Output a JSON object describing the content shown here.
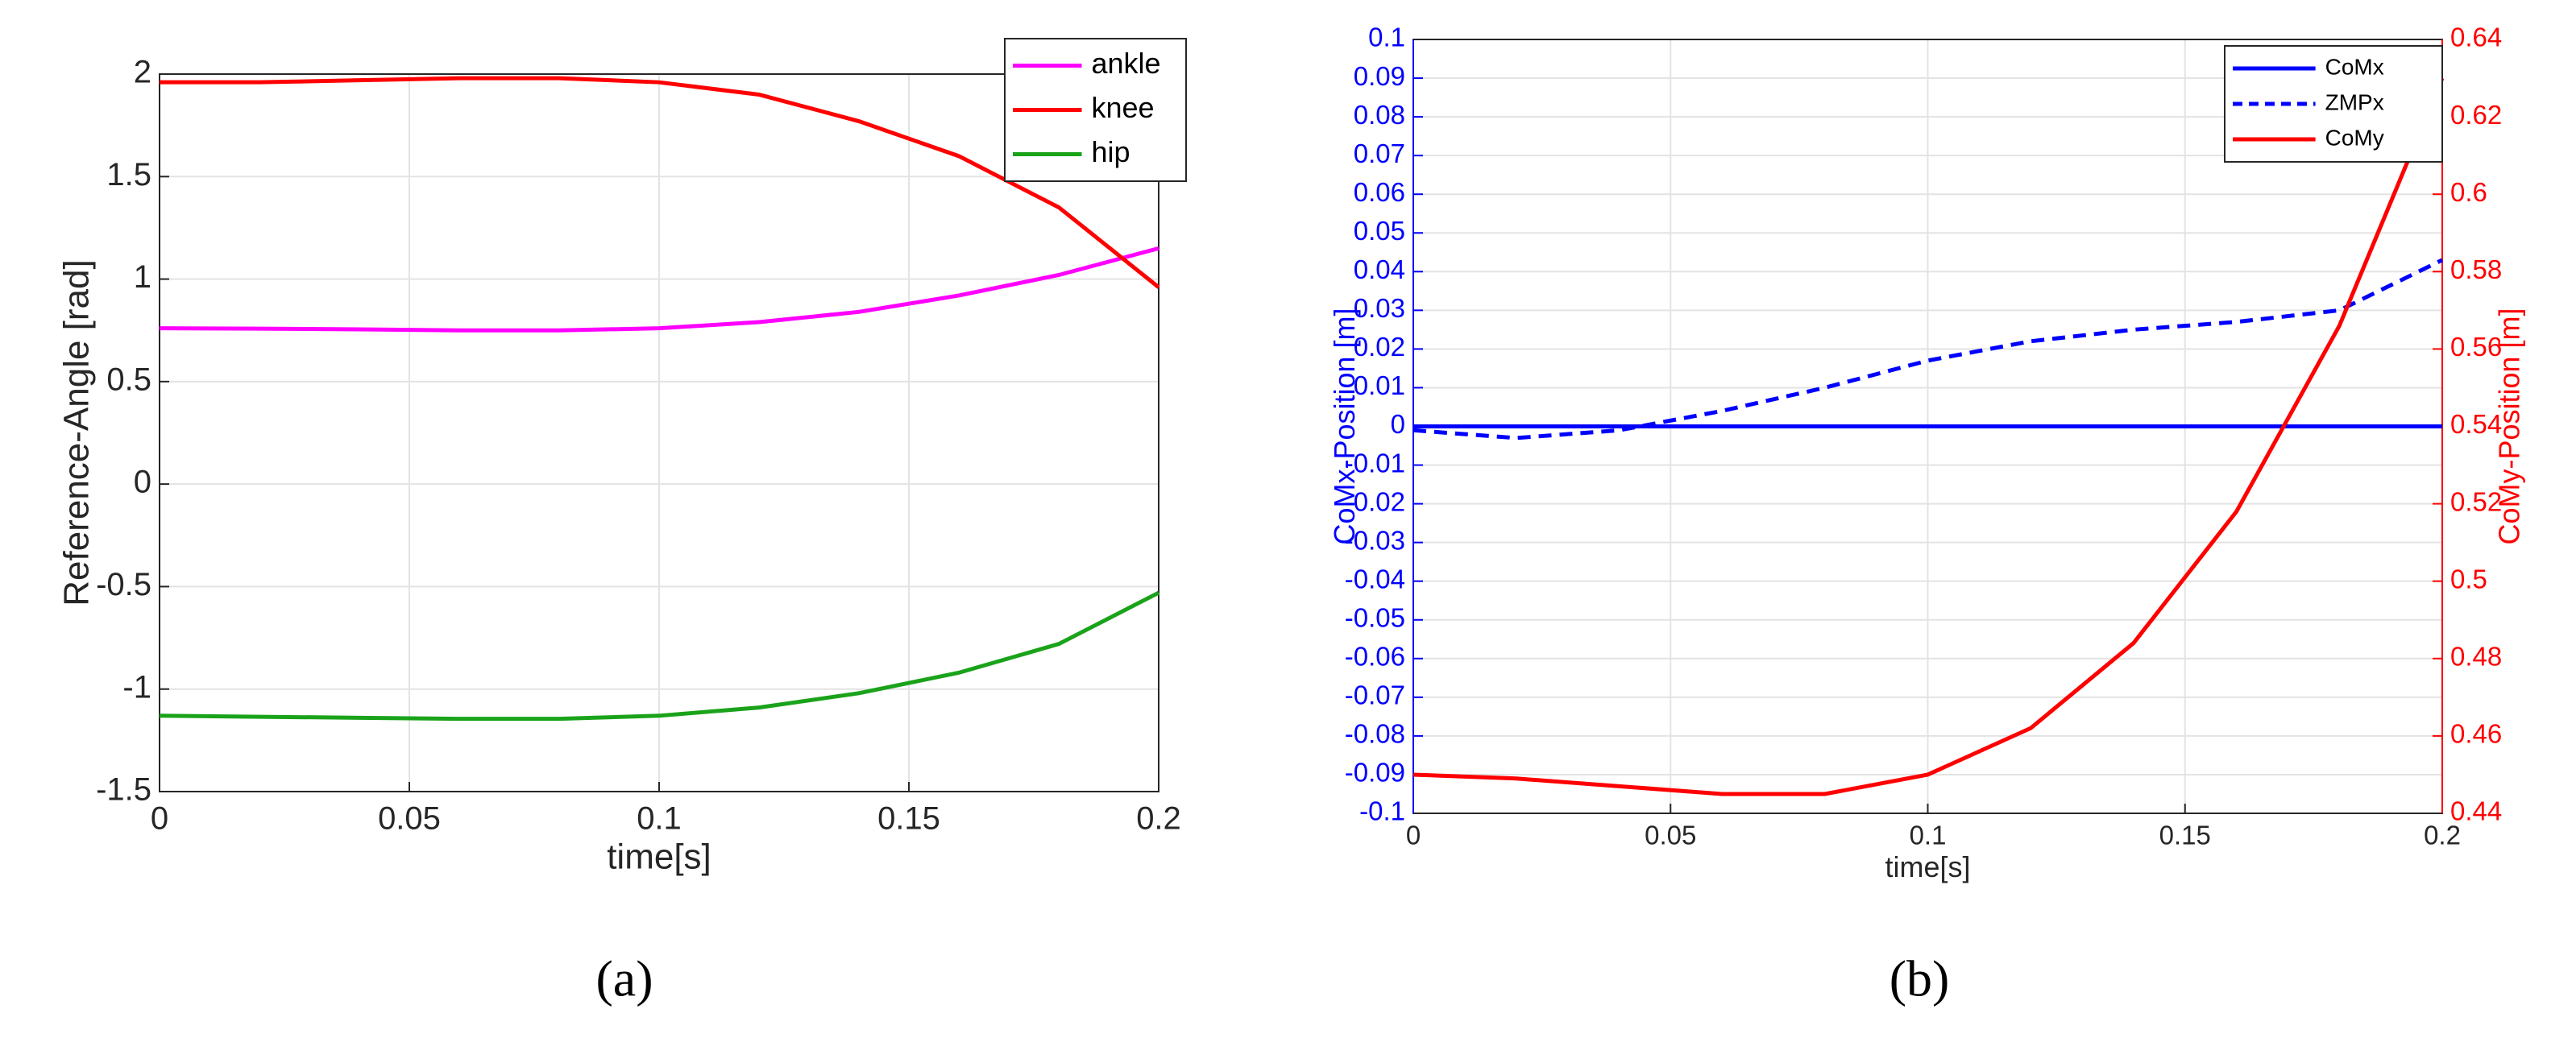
{
  "chart_data": [
    {
      "type": "line",
      "caption": "(a)",
      "xlabel": "time[s]",
      "ylabel": "Reference-Angle [rad]",
      "x": [
        0,
        0.02,
        0.04,
        0.06,
        0.08,
        0.1,
        0.12,
        0.14,
        0.16,
        0.18,
        0.2
      ],
      "series": [
        {
          "name": "ankle",
          "color": "#ff00ff",
          "values": [
            0.76,
            0.758,
            0.755,
            0.75,
            0.75,
            0.76,
            0.79,
            0.84,
            0.92,
            1.02,
            1.15
          ]
        },
        {
          "name": "knee",
          "color": "#ff0000",
          "values": [
            1.96,
            1.96,
            1.97,
            1.98,
            1.98,
            1.96,
            1.9,
            1.77,
            1.6,
            1.35,
            0.96
          ]
        },
        {
          "name": "hip",
          "color": "#1aa31a",
          "values": [
            -1.13,
            -1.135,
            -1.14,
            -1.145,
            -1.145,
            -1.13,
            -1.09,
            -1.02,
            -0.92,
            -0.78,
            -0.53
          ]
        }
      ],
      "xlim": [
        0,
        0.2
      ],
      "xticks": [
        0,
        0.05,
        0.1,
        0.15,
        0.2
      ],
      "ylim": [
        -1.5,
        2
      ],
      "yticks": [
        -1.5,
        -1,
        -0.5,
        0,
        0.5,
        1,
        1.5,
        2
      ],
      "grid": true,
      "legend": "upper right"
    },
    {
      "type": "line",
      "caption": "(b)",
      "xlabel": "time[s]",
      "ylabel": "CoMx-Position [m]",
      "y2label": "CoMy-Position [m]",
      "y_color": "#0000ff",
      "y2_color": "#ff0000",
      "x": [
        0,
        0.02,
        0.04,
        0.06,
        0.08,
        0.1,
        0.12,
        0.14,
        0.16,
        0.18,
        0.2
      ],
      "series": [
        {
          "name": "CoMx",
          "color": "#0000ff",
          "linestyle": "solid",
          "values": [
            0,
            0,
            0,
            0,
            0,
            0,
            0,
            0,
            0,
            0,
            0
          ]
        },
        {
          "name": "ZMPx",
          "color": "#0000ff",
          "linestyle": "dashed",
          "values": [
            -0.001,
            -0.003,
            -0.001,
            0.004,
            0.01,
            0.017,
            0.022,
            0.025,
            0.027,
            0.03,
            0.043
          ]
        },
        {
          "name": "CoMy",
          "color": "#ff0000",
          "linestyle": "solid",
          "axis": "y2",
          "values": [
            0.45,
            0.449,
            0.447,
            0.445,
            0.445,
            0.45,
            0.462,
            0.484,
            0.518,
            0.566,
            0.63
          ]
        }
      ],
      "xlim": [
        0,
        0.2
      ],
      "xticks": [
        0,
        0.05,
        0.1,
        0.15,
        0.2
      ],
      "ylim": [
        -0.1,
        0.1
      ],
      "yticks": [
        -0.1,
        -0.09,
        -0.08,
        -0.07,
        -0.06,
        -0.05,
        -0.04,
        -0.03,
        -0.02,
        -0.01,
        0,
        0.01,
        0.02,
        0.03,
        0.04,
        0.05,
        0.06,
        0.07,
        0.08,
        0.09,
        0.1
      ],
      "y2lim": [
        0.44,
        0.64
      ],
      "y2ticks": [
        0.44,
        0.46,
        0.48,
        0.5,
        0.52,
        0.54,
        0.56,
        0.58,
        0.6,
        0.62,
        0.64
      ],
      "grid": true,
      "legend": "upper right"
    }
  ]
}
